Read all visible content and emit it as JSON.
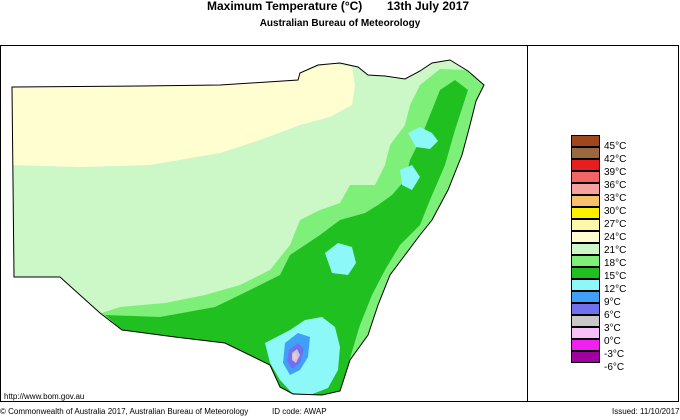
{
  "header": {
    "title": "Maximum Temperature (°C)",
    "date": "13th July 2017",
    "subtitle": "Australian Bureau of Meteorology"
  },
  "legend": {
    "items": [
      {
        "label": "45°C",
        "color": "#a0461c"
      },
      {
        "label": "42°C",
        "color": "#9b6840"
      },
      {
        "label": "39°C",
        "color": "#e81e1e"
      },
      {
        "label": "36°C",
        "color": "#f46464"
      },
      {
        "label": "33°C",
        "color": "#f8a0a0"
      },
      {
        "label": "30°C",
        "color": "#f8c06e"
      },
      {
        "label": "27°C",
        "color": "#fff000"
      },
      {
        "label": "24°C",
        "color": "#fff8a8"
      },
      {
        "label": "21°C",
        "color": "#fffed0"
      },
      {
        "label": "18°C",
        "color": "#ccf8c8"
      },
      {
        "label": "15°C",
        "color": "#7ef07a"
      },
      {
        "label": "12°C",
        "color": "#20c020"
      },
      {
        "label": "9°C",
        "color": "#8cf8f8"
      },
      {
        "label": "6°C",
        "color": "#40a0f8"
      },
      {
        "label": "3°C",
        "color": "#7070f0"
      },
      {
        "label": "0°C",
        "color": "#c8c8c8"
      },
      {
        "label": "-3°C",
        "color": "#f8c0f8"
      },
      {
        "label": "-6°C",
        "color": "#f020f0"
      },
      {
        "label": "",
        "color": "#a000a0"
      }
    ]
  },
  "footer": {
    "url": "http://www.bom.gov.au",
    "copyright": "© Commonwealth of Australia 2017, Australian Bureau of Meteorology",
    "id_code": "ID code: AWAP",
    "issued": "Issued: 11/10/2017"
  }
}
